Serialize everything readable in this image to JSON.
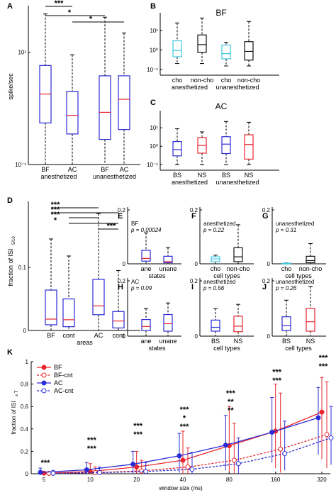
{
  "colors": {
    "blue": "#2b2bd6",
    "red": "#e8262e",
    "black": "#111111",
    "cyan": "#3cc7e2",
    "median_red": "#e8262e",
    "star_blue": "#2a8fd6"
  },
  "chart_data": [
    {
      "panel": "A",
      "type": "box",
      "log_y": true,
      "ylim": [
        0.1,
        60
      ],
      "ylabel": "spike/sec",
      "yticks": [
        "10⁻¹",
        "10¹"
      ],
      "categories": [
        "BF",
        "AC",
        "BF",
        "AC"
      ],
      "groups": [
        "anesthetized",
        "unanesthetized"
      ],
      "boxes": [
        {
          "min": 0.1,
          "q1": 0.55,
          "median": 1.8,
          "q3": 5.8,
          "max": 48,
          "color": "blue",
          "median_color": "red"
        },
        {
          "min": 0.1,
          "q1": 0.35,
          "median": 0.75,
          "q3": 2.0,
          "max": 9,
          "color": "blue",
          "median_color": "red"
        },
        {
          "min": 0.1,
          "q1": 0.28,
          "median": 0.85,
          "q3": 3.8,
          "max": 42,
          "color": "blue",
          "median_color": "red"
        },
        {
          "min": 0.1,
          "q1": 0.42,
          "median": 1.45,
          "q3": 3.8,
          "max": 22,
          "color": "blue",
          "median_color": "red"
        }
      ],
      "significance": [
        {
          "from": 0,
          "to": 1,
          "label": "***"
        },
        {
          "from": 0,
          "to": 2,
          "label": "*"
        },
        {
          "from": 1,
          "to": 3,
          "label": "*"
        }
      ]
    },
    {
      "panel": "B",
      "type": "box",
      "log_y": true,
      "ylim": [
        0.05,
        60
      ],
      "title": "BF",
      "yticks": [
        "10⁻¹",
        "10⁰",
        "10¹"
      ],
      "categories": [
        "cho",
        "non-cho",
        "cho",
        "non-cho"
      ],
      "groups": [
        "anesthetized",
        "unanesthetized"
      ],
      "boxes": [
        {
          "min": 0.2,
          "q1": 0.45,
          "median": 0.95,
          "q3": 3.0,
          "max": 25,
          "color": "cyan"
        },
        {
          "min": 0.2,
          "q1": 0.75,
          "median": 1.9,
          "q3": 6.0,
          "max": 45,
          "color": "black"
        },
        {
          "min": 0.15,
          "q1": 0.35,
          "median": 0.65,
          "q3": 1.8,
          "max": 2.5,
          "color": "cyan"
        },
        {
          "min": 0.15,
          "q1": 0.3,
          "median": 0.85,
          "q3": 2.7,
          "max": 30,
          "color": "black"
        }
      ]
    },
    {
      "panel": "C",
      "type": "box",
      "log_y": true,
      "ylim": [
        0.05,
        60
      ],
      "title": "AC",
      "yticks": [
        "10⁻¹",
        "10⁰",
        "10¹"
      ],
      "categories": [
        "BS",
        "NS",
        "BS",
        "NS"
      ],
      "groups": [
        "anesthetized",
        "unanesthetized"
      ],
      "boxes": [
        {
          "min": 0.1,
          "q1": 0.3,
          "median": 0.65,
          "q3": 1.8,
          "max": 9,
          "color": "blue"
        },
        {
          "min": 0.1,
          "q1": 0.42,
          "median": 1.1,
          "q3": 2.9,
          "max": 6,
          "color": "red"
        },
        {
          "min": 0.1,
          "q1": 0.4,
          "median": 1.3,
          "q3": 3.3,
          "max": 22,
          "color": "blue"
        },
        {
          "min": 0.1,
          "q1": 0.2,
          "median": 1.25,
          "q3": 4.2,
          "max": 20,
          "color": "red"
        }
      ]
    },
    {
      "panel": "D",
      "type": "box",
      "ylim": [
        0,
        0.2
      ],
      "ylabel": "fraction of ISI",
      "ylabel_sub": "5/10",
      "yticks": [
        "0",
        "0.1"
      ],
      "xlabel": "areas",
      "categories": [
        "BF",
        "cont",
        "AC",
        "cont"
      ],
      "boxes": [
        {
          "min": 0,
          "q1": 0.009,
          "median": 0.018,
          "q3": 0.064,
          "max": 0.145,
          "color": "blue",
          "median_color": "red"
        },
        {
          "min": 0,
          "q1": 0.006,
          "median": 0.017,
          "q3": 0.05,
          "max": 0.118,
          "color": "blue",
          "median_color": "red"
        },
        {
          "min": 0,
          "q1": 0.025,
          "median": 0.039,
          "q3": 0.081,
          "max": 0.185,
          "color": "blue",
          "median_color": "red"
        },
        {
          "min": 0,
          "q1": 0.004,
          "median": 0.015,
          "q3": 0.03,
          "max": 0.095,
          "color": "blue",
          "median_color": "red"
        }
      ],
      "significance": [
        {
          "from": 0,
          "to": 2,
          "label": "***"
        },
        {
          "from": 0,
          "to": 3,
          "label": "***"
        },
        {
          "from": 1,
          "to": 2,
          "label": "***"
        },
        {
          "from": 1,
          "to": 3,
          "label": "*"
        },
        {
          "from": 2,
          "to": 3,
          "label": "***"
        }
      ]
    },
    {
      "panel": "E",
      "type": "box",
      "ylim": [
        0,
        0.2
      ],
      "title": "BF",
      "stat": "p = 0.00024",
      "yticks": [
        "0",
        "0.2"
      ],
      "xlabel": "states",
      "categories": [
        "ane",
        "unane"
      ],
      "boxes": [
        {
          "min": 0,
          "q1": 0.01,
          "median": 0.02,
          "q3": 0.05,
          "max": 0.115,
          "color": "blue",
          "median_color": "red"
        },
        {
          "min": 0,
          "q1": 0.004,
          "median": 0.008,
          "q3": 0.028,
          "max": 0.06,
          "color": "blue",
          "median_color": "red"
        }
      ]
    },
    {
      "panel": "F",
      "type": "box",
      "ylim": [
        0,
        0.2
      ],
      "title": "anesthetized",
      "stat": "p = 0.22",
      "yticks": [
        "0",
        "0.2"
      ],
      "xlabel": "cell types",
      "categories": [
        "cho",
        "non-cho"
      ],
      "boxes": [
        {
          "min": 0,
          "q1": 0.008,
          "median": 0.018,
          "q3": 0.026,
          "max": 0.032,
          "color": "cyan"
        },
        {
          "min": 0,
          "q1": 0.008,
          "median": 0.026,
          "q3": 0.06,
          "max": 0.145,
          "color": "black"
        }
      ]
    },
    {
      "panel": "G",
      "type": "box",
      "ylim": [
        0,
        0.2
      ],
      "title": "unanesthetized",
      "stat": "p = 0.31",
      "yticks": [
        "0",
        "0.2"
      ],
      "xlabel": "cell types",
      "categories": [
        "cho",
        "non-cho"
      ],
      "boxes": [
        {
          "min": 0,
          "q1": 0,
          "median": 0.001,
          "q3": 0.002,
          "max": 0.003,
          "color": "cyan"
        },
        {
          "min": 0,
          "q1": 0.004,
          "median": 0.012,
          "q3": 0.028,
          "max": 0.075,
          "color": "black"
        }
      ]
    },
    {
      "panel": "H",
      "type": "box",
      "ylim": [
        0,
        0.2
      ],
      "title": "AC",
      "stat": "p = 0.09",
      "yticks": [
        "0",
        "0.2"
      ],
      "xlabel": "states",
      "categories": [
        "ane",
        "unane"
      ],
      "boxes": [
        {
          "min": 0,
          "q1": 0.02,
          "median": 0.035,
          "q3": 0.06,
          "max": 0.1,
          "color": "blue",
          "median_color": "red"
        },
        {
          "min": 0,
          "q1": 0.018,
          "median": 0.045,
          "q3": 0.078,
          "max": 0.12,
          "color": "blue",
          "median_color": "red"
        }
      ]
    },
    {
      "panel": "I",
      "type": "box",
      "ylim": [
        0,
        0.2
      ],
      "title": "anesthetized",
      "stat": "p = 0.56",
      "yticks": [
        "0",
        "0.2"
      ],
      "xlabel": "cell types",
      "categories": [
        "BS",
        "NS"
      ],
      "boxes": [
        {
          "min": 0,
          "q1": 0.018,
          "median": 0.032,
          "q3": 0.058,
          "max": 0.1,
          "color": "blue"
        },
        {
          "min": 0,
          "q1": 0.016,
          "median": 0.036,
          "q3": 0.072,
          "max": 0.115,
          "color": "red"
        }
      ]
    },
    {
      "panel": "J",
      "type": "box",
      "ylim": [
        0,
        0.2
      ],
      "title": "unanesthetized",
      "stat": "p = 0.26",
      "yticks": [
        "0",
        "0.2"
      ],
      "xlabel": "cell types",
      "categories": [
        "BS",
        "NS"
      ],
      "boxes": [
        {
          "min": 0,
          "q1": 0.02,
          "median": 0.038,
          "q3": 0.07,
          "max": 0.13,
          "color": "blue"
        },
        {
          "min": 0,
          "q1": 0.018,
          "median": 0.052,
          "q3": 0.1,
          "max": 0.18,
          "color": "red"
        }
      ]
    },
    {
      "panel": "K",
      "type": "line",
      "ylim": [
        0,
        1
      ],
      "xlabel": "window size (ms)",
      "ylabel": "fraction of ISI",
      "ylabel_sub": "≤ T",
      "yticks": [
        "0",
        "0.2",
        "0.4",
        "0.6",
        "0.8",
        "1"
      ],
      "categories": [
        "5",
        "10",
        "20",
        "40",
        "80",
        "160",
        "320"
      ],
      "series": [
        {
          "name": "BF",
          "color": "red",
          "dashed": false,
          "filled": true,
          "values": [
            0.005,
            0.02,
            0.06,
            0.12,
            0.25,
            0.38,
            0.55
          ],
          "err_low": [
            0.0,
            0.0,
            0.0,
            0.0,
            0.02,
            0.05,
            0.13
          ],
          "err_high": [
            0.02,
            0.09,
            0.2,
            0.38,
            0.6,
            0.8,
            0.86
          ]
        },
        {
          "name": "BF-cnt",
          "color": "red",
          "dashed": true,
          "filled": false,
          "values": [
            0.003,
            0.01,
            0.025,
            0.06,
            0.12,
            0.22,
            0.35
          ],
          "err_low": [
            0.0,
            0.0,
            0.0,
            0.0,
            0.0,
            0.01,
            0.05
          ],
          "err_high": [
            0.01,
            0.06,
            0.12,
            0.23,
            0.45,
            0.72,
            0.82
          ]
        },
        {
          "name": "AC",
          "color": "blue",
          "dashed": false,
          "filled": true,
          "values": [
            0.012,
            0.035,
            0.085,
            0.16,
            0.255,
            0.37,
            0.5
          ],
          "err_low": [
            0.0,
            0.0,
            0.0,
            0.01,
            0.03,
            0.1,
            0.17
          ],
          "err_high": [
            0.05,
            0.1,
            0.2,
            0.36,
            0.52,
            0.68,
            0.77
          ]
        },
        {
          "name": "AC-cnt",
          "color": "blue",
          "dashed": true,
          "filled": false,
          "values": [
            0.004,
            0.01,
            0.02,
            0.04,
            0.09,
            0.18,
            0.32
          ],
          "err_low": [
            0.0,
            0.0,
            0.0,
            0.0,
            0.0,
            0.03,
            0.08
          ],
          "err_high": [
            0.03,
            0.06,
            0.1,
            0.19,
            0.32,
            0.47,
            0.6
          ]
        }
      ],
      "significance": [
        [
          {
            "label": "***",
            "color": "black"
          }
        ],
        [
          {
            "label": "***",
            "color": "star_blue"
          },
          {
            "label": "***",
            "color": "black"
          }
        ],
        [
          {
            "label": "***",
            "color": "star_blue"
          },
          {
            "label": "***",
            "color": "black"
          }
        ],
        [
          {
            "label": "***",
            "color": "star_blue"
          },
          {
            "label": "*",
            "color": "red"
          },
          {
            "label": "***",
            "color": "black"
          }
        ],
        [
          {
            "label": "***",
            "color": "star_blue"
          },
          {
            "label": "**",
            "color": "red"
          },
          {
            "label": "**",
            "color": "black"
          }
        ],
        [
          {
            "label": "***",
            "color": "star_blue"
          },
          {
            "label": "***",
            "color": "red"
          }
        ],
        [
          {
            "label": "***",
            "color": "star_blue"
          },
          {
            "label": "***",
            "color": "red"
          }
        ]
      ]
    }
  ]
}
